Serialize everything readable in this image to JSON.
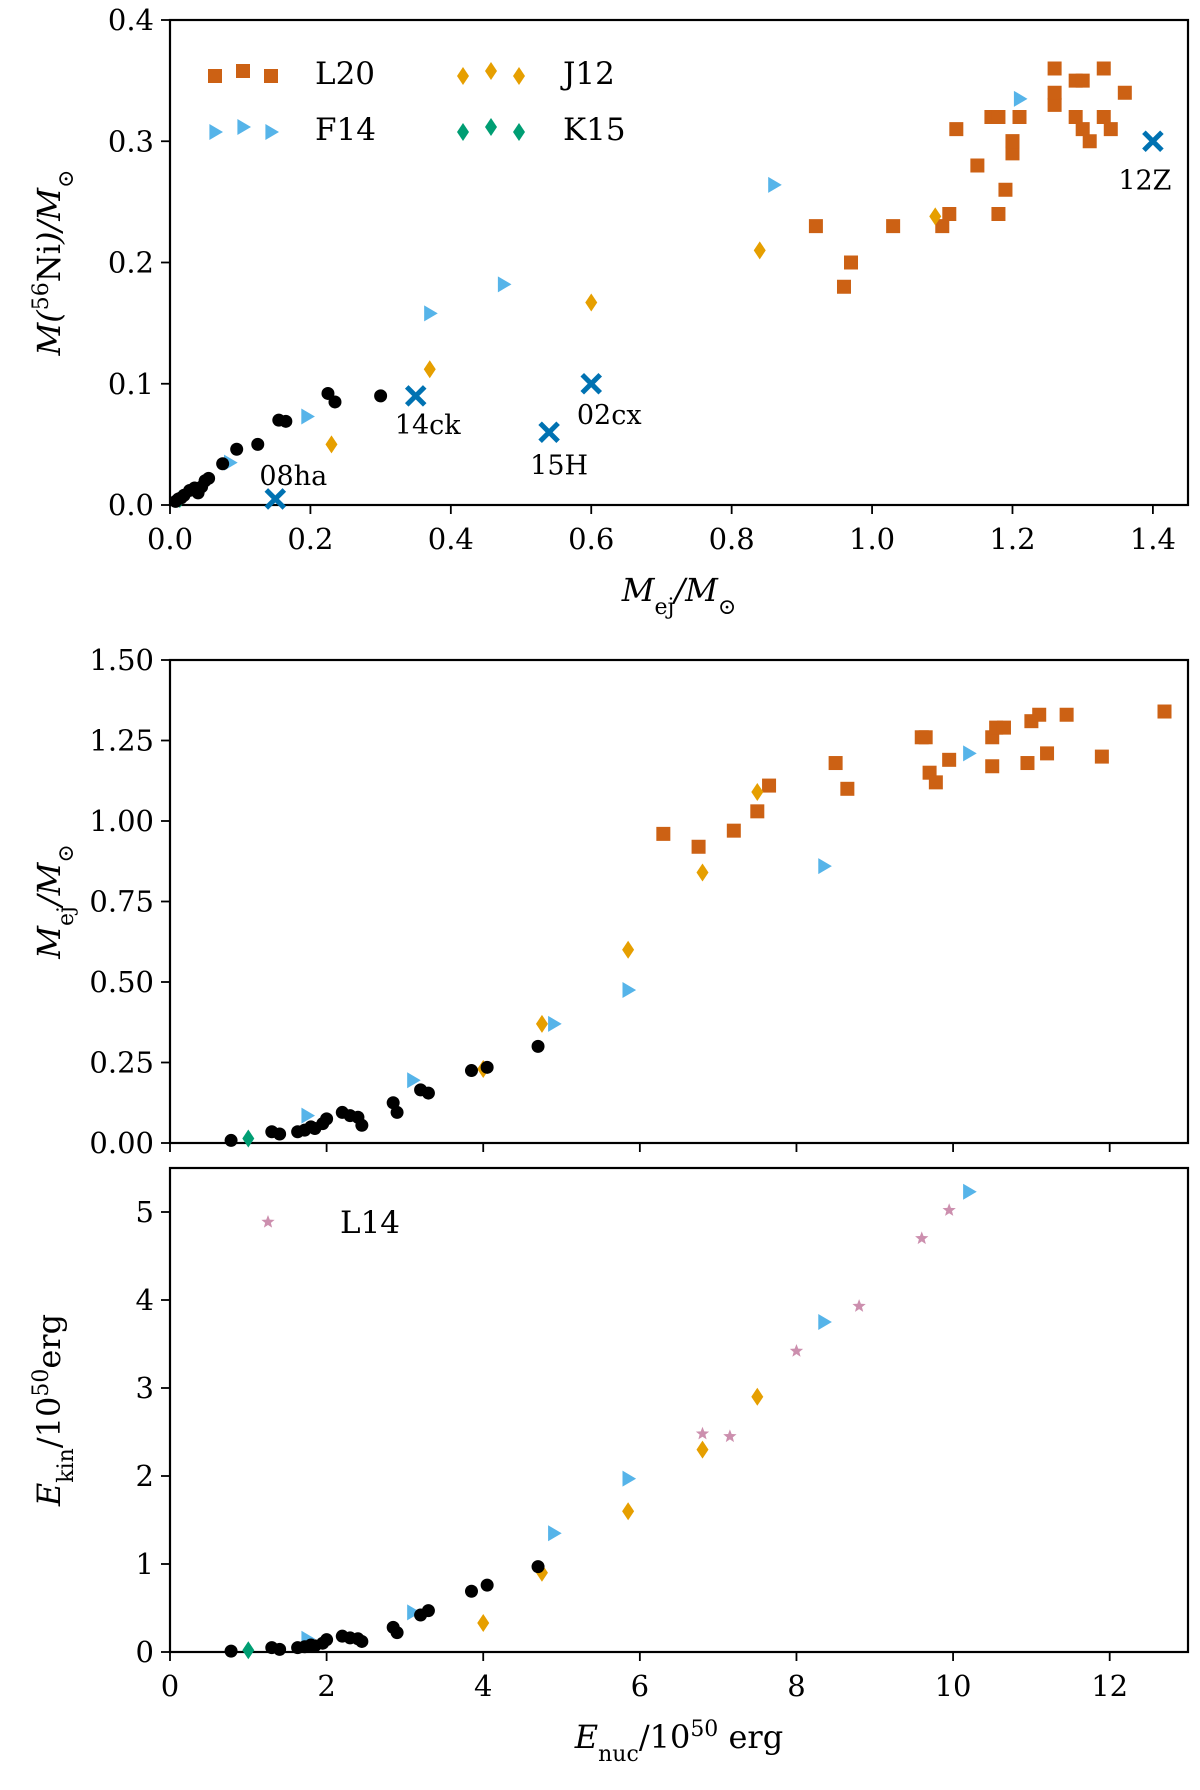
{
  "colors": {
    "L20": "#cc6114",
    "F14": "#56b4e9",
    "J12": "#e69f00",
    "K15": "#009e73",
    "obs": "#0072b2",
    "L14": "#cc8fae",
    "black": "#000000"
  },
  "chart_data": [
    {
      "id": "top",
      "type": "scatter",
      "xlabel_html": "M<tspan baseline-shift='sub' font-size='22' font-style='normal'>ej</tspan>/M<tspan baseline-shift='sub' font-size='22' font-style='normal'>⊙</tspan>",
      "ylabel_html": "M(<tspan baseline-shift='super' font-size='22' font-style='normal'>56</tspan><tspan font-style='normal'>Ni</tspan>)/M<tspan baseline-shift='sub' font-size='22' font-style='normal'>⊙</tspan>",
      "xlim": [
        0,
        1.45
      ],
      "ylim": [
        0,
        0.4
      ],
      "xticks": [
        0.0,
        0.2,
        0.4,
        0.6,
        0.8,
        1.0,
        1.2,
        1.4
      ],
      "xtick_labels": [
        "0.0",
        "0.2",
        "0.4",
        "0.6",
        "0.8",
        "1.0",
        "1.2",
        "1.4"
      ],
      "yticks": [
        0.0,
        0.1,
        0.2,
        0.3,
        0.4
      ],
      "ytick_labels": [
        "0.0",
        "0.1",
        "0.2",
        "0.3",
        "0.4"
      ],
      "legend": [
        {
          "label": "L20",
          "marker": "square",
          "color_key": "L20",
          "row": 0,
          "col": 0
        },
        {
          "label": "F14",
          "marker": "triangle",
          "color_key": "F14",
          "row": 1,
          "col": 0
        },
        {
          "label": "J12",
          "marker": "diamond",
          "color_key": "J12",
          "row": 0,
          "col": 1
        },
        {
          "label": "K15",
          "marker": "diamond",
          "color_key": "K15",
          "row": 1,
          "col": 1
        }
      ],
      "series": [
        {
          "name": "L20",
          "marker": "square",
          "color_key": "L20",
          "x": [
            0.92,
            0.96,
            0.97,
            1.03,
            1.1,
            1.11,
            1.12,
            1.15,
            1.17,
            1.18,
            1.18,
            1.19,
            1.2,
            1.2,
            1.2,
            1.21,
            1.26,
            1.26,
            1.26,
            1.29,
            1.29,
            1.3,
            1.3,
            1.31,
            1.33,
            1.33,
            1.34,
            1.36
          ],
          "y": [
            0.23,
            0.18,
            0.2,
            0.23,
            0.23,
            0.24,
            0.31,
            0.28,
            0.32,
            0.24,
            0.32,
            0.26,
            0.29,
            0.3,
            0.3,
            0.32,
            0.33,
            0.34,
            0.36,
            0.32,
            0.35,
            0.31,
            0.35,
            0.3,
            0.32,
            0.36,
            0.31,
            0.34
          ]
        },
        {
          "name": "F14",
          "marker": "triangle",
          "color_key": "F14",
          "x": [
            0.085,
            0.195,
            0.37,
            0.475,
            0.86,
            1.21
          ],
          "y": [
            0.035,
            0.073,
            0.158,
            0.182,
            0.264,
            0.335
          ]
        },
        {
          "name": "J12",
          "marker": "diamond",
          "color_key": "J12",
          "x": [
            0.23,
            0.37,
            0.6,
            0.84,
            1.09
          ],
          "y": [
            0.05,
            0.112,
            0.167,
            0.21,
            0.238
          ]
        },
        {
          "name": "K15",
          "marker": "diamond",
          "color_key": "K15",
          "x": [
            0.014
          ],
          "y": [
            0.005
          ]
        },
        {
          "name": "other",
          "marker": "circle",
          "color_key": "black",
          "x": [
            0.008,
            0.012,
            0.016,
            0.02,
            0.028,
            0.035,
            0.04,
            0.045,
            0.05,
            0.055,
            0.075,
            0.095,
            0.125,
            0.155,
            0.165,
            0.225,
            0.235,
            0.3
          ],
          "y": [
            0.003,
            0.005,
            0.006,
            0.008,
            0.012,
            0.014,
            0.01,
            0.015,
            0.02,
            0.022,
            0.034,
            0.046,
            0.05,
            0.07,
            0.069,
            0.092,
            0.085,
            0.09
          ]
        },
        {
          "name": "observed",
          "marker": "x",
          "color_key": "obs",
          "x": [
            0.15,
            0.35,
            0.54,
            0.6,
            1.4
          ],
          "y": [
            0.005,
            0.09,
            0.06,
            0.1,
            0.3
          ]
        }
      ],
      "annotations": [
        {
          "text": "08ha",
          "x": 0.15,
          "y": 0.005,
          "anchor": "middle",
          "dx": 18,
          "dy": -14
        },
        {
          "text": "14ck",
          "x": 0.35,
          "y": 0.09,
          "anchor": "middle",
          "dx": 12,
          "dy": 38
        },
        {
          "text": "15H",
          "x": 0.54,
          "y": 0.06,
          "anchor": "middle",
          "dx": 10,
          "dy": 42
        },
        {
          "text": "02cx",
          "x": 0.6,
          "y": 0.1,
          "anchor": "middle",
          "dx": 18,
          "dy": 40
        },
        {
          "text": "12Z",
          "x": 1.4,
          "y": 0.3,
          "anchor": "middle",
          "dx": -8,
          "dy": 48
        }
      ]
    },
    {
      "id": "middle",
      "type": "scatter",
      "xlabel_html": "",
      "ylabel_html": "M<tspan baseline-shift='sub' font-size='22' font-style='normal'>ej</tspan>/M<tspan baseline-shift='sub' font-size='22' font-style='normal'>⊙</tspan>",
      "xlim": [
        0,
        13
      ],
      "ylim": [
        0,
        1.5
      ],
      "xticks": [
        0,
        2,
        4,
        6,
        8,
        10,
        12
      ],
      "xtick_labels": [],
      "yticks": [
        0.0,
        0.25,
        0.5,
        0.75,
        1.0,
        1.25,
        1.5
      ],
      "ytick_labels": [
        "0.00",
        "0.25",
        "0.50",
        "0.75",
        "1.00",
        "1.25",
        "1.50"
      ],
      "legend": [],
      "series": [
        {
          "name": "L20",
          "marker": "square",
          "color_key": "L20",
          "x": [
            6.3,
            6.75,
            7.2,
            7.5,
            7.65,
            8.5,
            8.65,
            9.6,
            9.65,
            9.7,
            9.78,
            9.95,
            10.5,
            10.5,
            10.55,
            10.65,
            10.95,
            11.0,
            11.1,
            11.2,
            11.45,
            11.9,
            12.7
          ],
          "y": [
            0.96,
            0.92,
            0.97,
            1.03,
            1.11,
            1.18,
            1.1,
            1.26,
            1.26,
            1.15,
            1.12,
            1.19,
            1.17,
            1.26,
            1.29,
            1.29,
            1.18,
            1.31,
            1.33,
            1.21,
            1.33,
            1.2,
            1.34
          ]
        },
        {
          "name": "F14",
          "marker": "triangle",
          "color_key": "F14",
          "x": [
            1.75,
            3.1,
            4.9,
            5.85,
            8.35,
            10.2
          ],
          "y": [
            0.085,
            0.195,
            0.37,
            0.475,
            0.86,
            1.21
          ]
        },
        {
          "name": "J12",
          "marker": "diamond",
          "color_key": "J12",
          "x": [
            4.0,
            4.75,
            5.85,
            6.8,
            7.5
          ],
          "y": [
            0.23,
            0.37,
            0.6,
            0.84,
            1.09
          ]
        },
        {
          "name": "K15",
          "marker": "diamond",
          "color_key": "K15",
          "x": [
            1.0
          ],
          "y": [
            0.014
          ]
        },
        {
          "name": "other",
          "marker": "circle",
          "color_key": "black",
          "x": [
            0.78,
            1.3,
            1.4,
            1.63,
            1.72,
            1.8,
            1.85,
            1.95,
            2.0,
            2.2,
            2.3,
            2.4,
            2.45,
            2.85,
            2.9,
            3.2,
            3.3,
            3.85,
            4.05,
            4.7
          ],
          "y": [
            0.008,
            0.035,
            0.028,
            0.035,
            0.04,
            0.05,
            0.045,
            0.06,
            0.075,
            0.095,
            0.085,
            0.08,
            0.055,
            0.125,
            0.095,
            0.165,
            0.155,
            0.225,
            0.235,
            0.3
          ]
        }
      ],
      "annotations": []
    },
    {
      "id": "bottom",
      "type": "scatter",
      "xlabel_html": "E<tspan baseline-shift='sub' font-size='22' font-style='normal'>nuc</tspan><tspan font-style='normal'>/10</tspan><tspan baseline-shift='super' font-size='22' font-style='normal'>50</tspan><tspan font-style='normal'> erg</tspan>",
      "ylabel_html": "E<tspan baseline-shift='sub' font-size='22' font-style='normal'>kin</tspan><tspan font-style='normal'>/10</tspan><tspan baseline-shift='super' font-size='22' font-style='normal'>50</tspan><tspan font-style='normal'>erg</tspan>",
      "xlim": [
        0,
        13
      ],
      "ylim": [
        0,
        5.5
      ],
      "xticks": [
        0,
        2,
        4,
        6,
        8,
        10,
        12
      ],
      "xtick_labels": [
        "0",
        "2",
        "4",
        "6",
        "8",
        "10",
        "12"
      ],
      "yticks": [
        0,
        1,
        2,
        3,
        4,
        5
      ],
      "ytick_labels": [
        "0",
        "1",
        "2",
        "3",
        "4",
        "5"
      ],
      "legend": [
        {
          "label": "L14",
          "marker": "star",
          "color_key": "L14",
          "row": 0,
          "col": 0
        }
      ],
      "series": [
        {
          "name": "L14",
          "marker": "star",
          "color_key": "L14",
          "x": [
            6.8,
            7.15,
            8.0,
            8.8,
            9.6,
            9.95
          ],
          "y": [
            2.48,
            2.45,
            3.42,
            3.93,
            4.7,
            5.02
          ]
        },
        {
          "name": "F14",
          "marker": "triangle",
          "color_key": "F14",
          "x": [
            1.75,
            3.1,
            4.9,
            5.85,
            8.35,
            10.2
          ],
          "y": [
            0.15,
            0.45,
            1.35,
            1.97,
            3.75,
            5.23
          ]
        },
        {
          "name": "J12",
          "marker": "diamond",
          "color_key": "J12",
          "x": [
            4.0,
            4.75,
            5.85,
            6.8,
            7.5
          ],
          "y": [
            0.33,
            0.9,
            1.6,
            2.3,
            2.9
          ]
        },
        {
          "name": "K15",
          "marker": "diamond",
          "color_key": "K15",
          "x": [
            1.0
          ],
          "y": [
            0.02
          ]
        },
        {
          "name": "other",
          "marker": "circle",
          "color_key": "black",
          "x": [
            0.78,
            1.3,
            1.4,
            1.63,
            1.72,
            1.8,
            1.85,
            1.95,
            2.0,
            2.2,
            2.3,
            2.4,
            2.45,
            2.85,
            2.9,
            3.2,
            3.3,
            3.85,
            4.05,
            4.7
          ],
          "y": [
            0.01,
            0.05,
            0.03,
            0.05,
            0.06,
            0.08,
            0.07,
            0.1,
            0.14,
            0.18,
            0.16,
            0.15,
            0.12,
            0.28,
            0.22,
            0.42,
            0.47,
            0.69,
            0.76,
            0.97
          ]
        }
      ],
      "annotations": []
    }
  ]
}
